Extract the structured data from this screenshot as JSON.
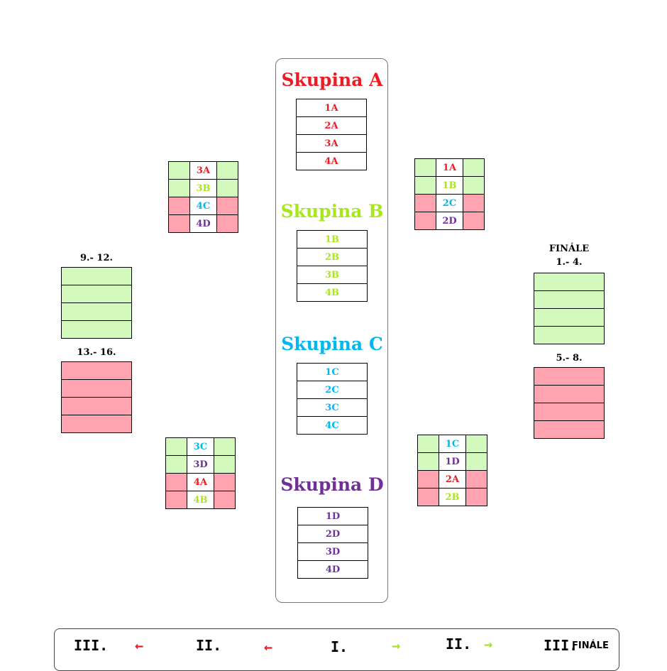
{
  "colors": {
    "A": "#ed1c24",
    "B": "#a8e61d",
    "C": "#00b7ef",
    "D": "#6f3198",
    "win": "#d3f9bc",
    "lose": "#ffa3b1"
  },
  "groups": [
    {
      "title": "Skupina A",
      "items": [
        "1A",
        "2A",
        "3A",
        "4A"
      ],
      "key": "A"
    },
    {
      "title": "Skupina B",
      "items": [
        "1B",
        "2B",
        "3B",
        "4B"
      ],
      "key": "B"
    },
    {
      "title": "Skupina C",
      "items": [
        "1C",
        "2C",
        "3C",
        "4C"
      ],
      "key": "C"
    },
    {
      "title": "Skupina D",
      "items": [
        "1D",
        "2D",
        "3D",
        "4D"
      ],
      "key": "D"
    }
  ],
  "brackets": [
    {
      "items": [
        "3A",
        "3B",
        "4C",
        "4D"
      ],
      "keys": [
        "A",
        "B",
        "C",
        "D"
      ]
    },
    {
      "items": [
        "1A",
        "1B",
        "2C",
        "2D"
      ],
      "keys": [
        "A",
        "B",
        "C",
        "D"
      ]
    },
    {
      "items": [
        "3C",
        "3D",
        "4A",
        "4B"
      ],
      "keys": [
        "C",
        "D",
        "A",
        "B"
      ]
    },
    {
      "items": [
        "1C",
        "1D",
        "2A",
        "2B"
      ],
      "keys": [
        "C",
        "D",
        "A",
        "B"
      ]
    }
  ],
  "results": {
    "r9_12": "9.- 12.",
    "r13_16": "13.- 16.",
    "finale": "FINÁLE",
    "r1_4": "1.- 4.",
    "r5_8": "5.- 8."
  },
  "legend": {
    "l3": "III.",
    "arrow_left": "←",
    "l2": "II.",
    "l1": "I.",
    "arrow_right": "→",
    "r2": "II.",
    "r3": "III.",
    "finale": "FINÁLE"
  }
}
